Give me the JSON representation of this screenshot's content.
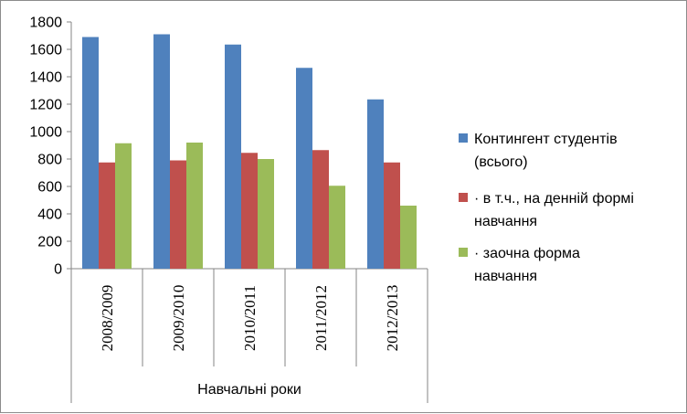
{
  "chart_data": {
    "type": "bar",
    "categories": [
      "2008/2009",
      "2009/2010",
      "2010/2011",
      "2011/2012",
      "2012/2013"
    ],
    "series": [
      {
        "name": "Контингент студентів (всього)",
        "values": [
          1690,
          1710,
          1635,
          1465,
          1235
        ],
        "color": "#4f81bd"
      },
      {
        "name": "·  в т.ч., на денній формі навчання",
        "values": [
          775,
          790,
          845,
          865,
          775
        ],
        "color": "#c0504d"
      },
      {
        "name": "·  заочна форма навчання",
        "values": [
          915,
          920,
          800,
          605,
          460
        ],
        "color": "#9bbb59"
      }
    ],
    "legend_lines": [
      [
        "Контингент студентів",
        "(всього)"
      ],
      [
        "·  в т.ч., на денній формі",
        "навчання"
      ],
      [
        "·  заочна форма",
        "навчання"
      ]
    ],
    "xlabel": "Навчальні роки",
    "ylabel": "",
    "ylim": [
      0,
      1800
    ],
    "yticks": [
      "0",
      "200",
      "400",
      "600",
      "800",
      "1000",
      "1200",
      "1400",
      "1600",
      "1800"
    ],
    "grid": false,
    "legend_position": "right"
  }
}
